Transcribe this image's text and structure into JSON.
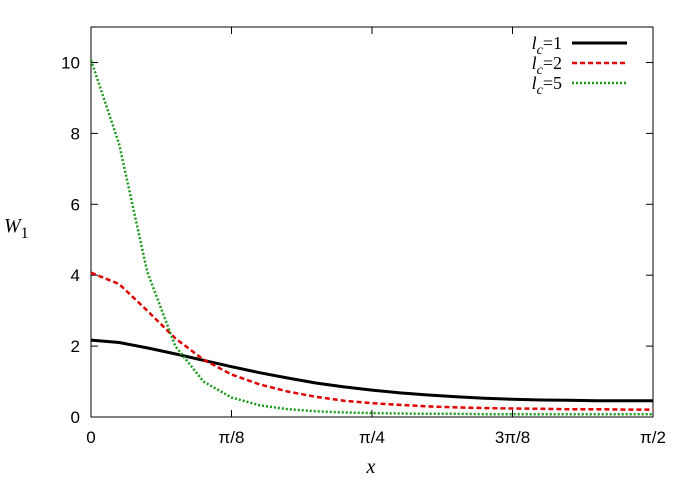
{
  "chart_data": {
    "type": "line",
    "title": "",
    "xlabel": "x",
    "ylabel": "W",
    "ylabel_sub": "1",
    "xlim": [
      0,
      1.5708
    ],
    "ylim": [
      0,
      11
    ],
    "x_ticks": [
      {
        "value": 0,
        "label": "0"
      },
      {
        "value": 0.3927,
        "label": "π/8"
      },
      {
        "value": 0.7854,
        "label": "π/4"
      },
      {
        "value": 1.1781,
        "label": "3π/8"
      },
      {
        "value": 1.5708,
        "label": "π/2"
      }
    ],
    "y_ticks": [
      {
        "value": 0,
        "label": "0"
      },
      {
        "value": 2,
        "label": "2"
      },
      {
        "value": 4,
        "label": "4"
      },
      {
        "value": 6,
        "label": "6"
      },
      {
        "value": 8,
        "label": "8"
      },
      {
        "value": 10,
        "label": "10"
      }
    ],
    "grid": false,
    "legend_position": "top-right",
    "x": [
      0,
      0.0785,
      0.1571,
      0.2356,
      0.3142,
      0.3927,
      0.4712,
      0.5498,
      0.6283,
      0.7069,
      0.7854,
      0.8639,
      0.9425,
      1.021,
      1.0996,
      1.1781,
      1.2566,
      1.3352,
      1.4137,
      1.4923,
      1.5708
    ],
    "series": [
      {
        "legend_main": "l",
        "legend_sub": "c",
        "legend_suffix": "=1",
        "color": "#000000",
        "dash": "",
        "width": 3,
        "values": [
          2.17,
          2.1,
          1.95,
          1.78,
          1.6,
          1.42,
          1.25,
          1.1,
          0.96,
          0.85,
          0.76,
          0.68,
          0.62,
          0.57,
          0.53,
          0.5,
          0.48,
          0.47,
          0.46,
          0.46,
          0.46
        ]
      },
      {
        "legend_main": "l",
        "legend_sub": "c",
        "legend_suffix": "=2",
        "color": "#e00000",
        "dash": "5,3",
        "width": 2.5,
        "values": [
          4.07,
          3.75,
          3.0,
          2.22,
          1.62,
          1.2,
          0.92,
          0.72,
          0.57,
          0.46,
          0.39,
          0.34,
          0.3,
          0.27,
          0.25,
          0.24,
          0.23,
          0.22,
          0.22,
          0.21,
          0.21
        ]
      },
      {
        "legend_main": "l",
        "legend_sub": "c",
        "legend_suffix": "=5",
        "color": "#1a9a1a",
        "dash": "2,2",
        "width": 2.5,
        "values": [
          10.07,
          7.7,
          4.1,
          2.0,
          1.0,
          0.55,
          0.33,
          0.22,
          0.16,
          0.13,
          0.11,
          0.1,
          0.09,
          0.09,
          0.08,
          0.08,
          0.08,
          0.08,
          0.08,
          0.08,
          0.08
        ]
      }
    ]
  }
}
